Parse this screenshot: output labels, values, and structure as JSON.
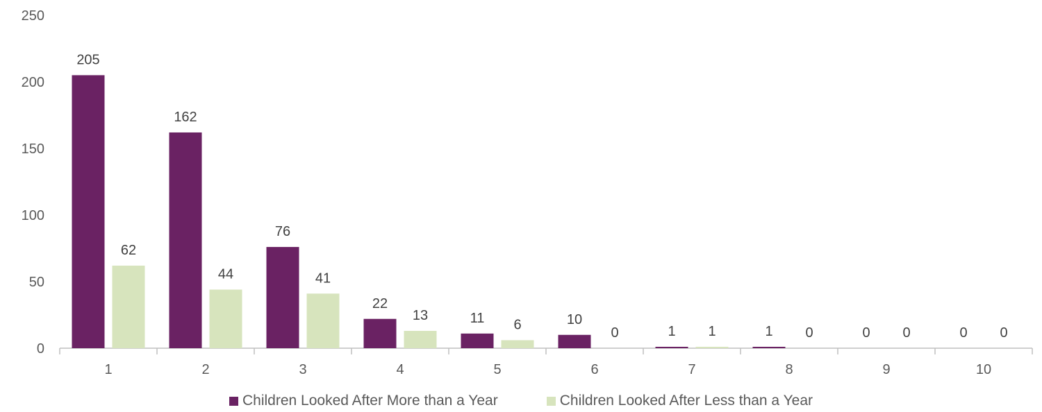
{
  "chart_data": {
    "type": "bar",
    "categories": [
      "1",
      "2",
      "3",
      "4",
      "5",
      "6",
      "7",
      "8",
      "9",
      "10"
    ],
    "series": [
      {
        "name": "Children Looked After More than a Year",
        "color": "#6A2263",
        "values": [
          205,
          162,
          76,
          22,
          11,
          10,
          1,
          1,
          0,
          0
        ]
      },
      {
        "name": "Children Looked After Less than a Year",
        "color": "#D7E4BD",
        "values": [
          62,
          44,
          41,
          13,
          6,
          0,
          1,
          0,
          0,
          0
        ]
      }
    ],
    "ylim": [
      0,
      250
    ],
    "yticks": [
      "0",
      "50",
      "100",
      "150",
      "200",
      "250"
    ],
    "xlabel": "",
    "ylabel": "",
    "grid": false,
    "legend_position": "bottom"
  }
}
